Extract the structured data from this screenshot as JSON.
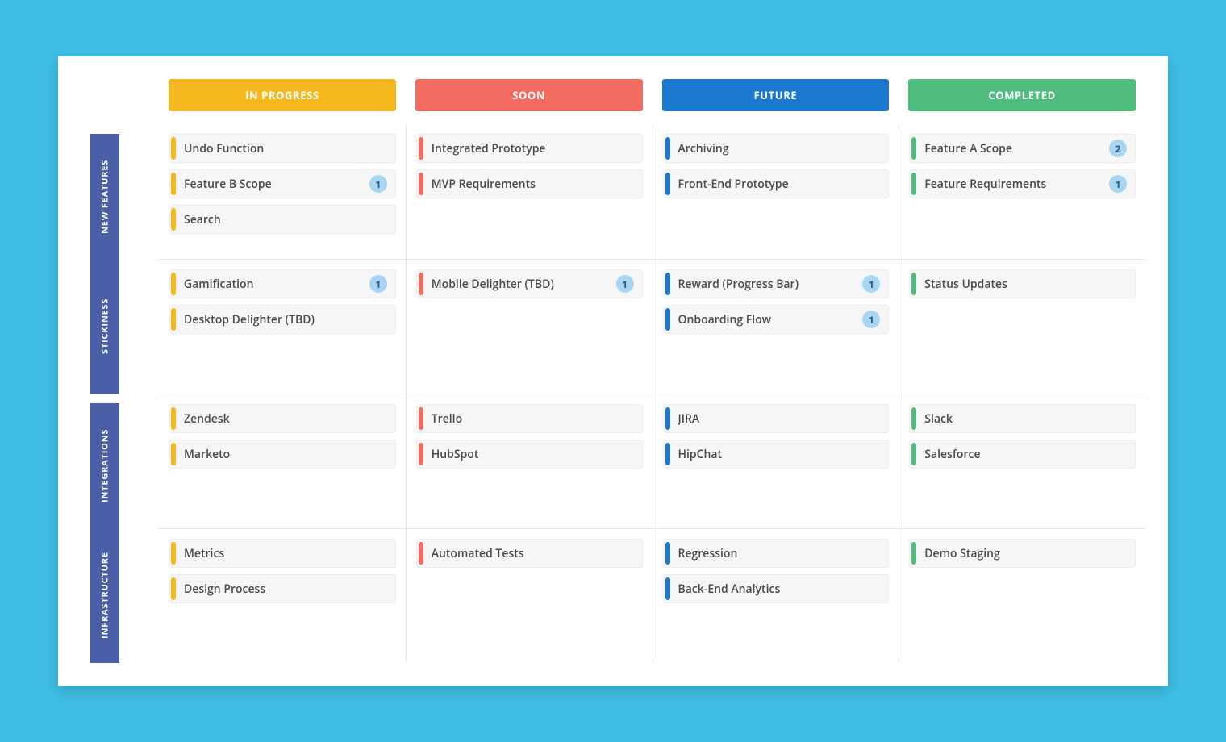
{
  "styling": {
    "page_bg": "#3fbee3",
    "board_bg": "#ffffff",
    "row_label_bg": "#4b5ea8",
    "row_label_color": "#ffffff",
    "card_bg": "#f6f6f6",
    "card_border": "#ececec",
    "card_text_color": "#4a4a4a",
    "badge_bg": "#a8d6f2",
    "badge_text": "#2a5a7a",
    "grid_line": "#e5e5e5",
    "card_fontsize": 14,
    "header_fontsize": 13,
    "row_label_fontsize": 11
  },
  "columns": [
    {
      "id": "in-progress",
      "label": "IN PROGRESS",
      "color": "#f5b81f"
    },
    {
      "id": "soon",
      "label": "SOON",
      "color": "#f26c62"
    },
    {
      "id": "future",
      "label": "FUTURE",
      "color": "#1a78cf"
    },
    {
      "id": "completed",
      "label": "COMPLETED",
      "color": "#4fbd7d"
    }
  ],
  "rows": [
    {
      "id": "new-features",
      "label": "NEW FEATURES"
    },
    {
      "id": "stickiness",
      "label": "STICKINESS"
    },
    {
      "id": "integrations",
      "label": "INTEGRATIONS"
    },
    {
      "id": "infrastructure",
      "label": "INFRASTRUCTURE"
    }
  ],
  "cards": {
    "new-features": {
      "in-progress": [
        {
          "title": "Undo Function"
        },
        {
          "title": "Feature B Scope",
          "badge": 1
        },
        {
          "title": "Search"
        }
      ],
      "soon": [
        {
          "title": "Integrated Prototype"
        },
        {
          "title": "MVP Requirements"
        }
      ],
      "future": [
        {
          "title": "Archiving"
        },
        {
          "title": "Front-End Prototype"
        }
      ],
      "completed": [
        {
          "title": "Feature A Scope",
          "badge": 2
        },
        {
          "title": "Feature Requirements",
          "badge": 1
        }
      ]
    },
    "stickiness": {
      "in-progress": [
        {
          "title": "Gamification",
          "badge": 1
        },
        {
          "title": "Desktop Delighter (TBD)"
        }
      ],
      "soon": [
        {
          "title": "Mobile Delighter (TBD)",
          "badge": 1
        }
      ],
      "future": [
        {
          "title": "Reward (Progress Bar)",
          "badge": 1
        },
        {
          "title": "Onboarding Flow",
          "badge": 1
        }
      ],
      "completed": [
        {
          "title": "Status Updates"
        }
      ]
    },
    "integrations": {
      "in-progress": [
        {
          "title": "Zendesk"
        },
        {
          "title": "Marketo"
        }
      ],
      "soon": [
        {
          "title": "Trello"
        },
        {
          "title": "HubSpot"
        }
      ],
      "future": [
        {
          "title": "JIRA"
        },
        {
          "title": "HipChat"
        }
      ],
      "completed": [
        {
          "title": "Slack"
        },
        {
          "title": "Salesforce"
        }
      ]
    },
    "infrastructure": {
      "in-progress": [
        {
          "title": "Metrics"
        },
        {
          "title": "Design Process"
        }
      ],
      "soon": [
        {
          "title": "Automated Tests"
        }
      ],
      "future": [
        {
          "title": "Regression"
        },
        {
          "title": "Back-End Analytics"
        }
      ],
      "completed": [
        {
          "title": "Demo Staging"
        }
      ]
    }
  }
}
